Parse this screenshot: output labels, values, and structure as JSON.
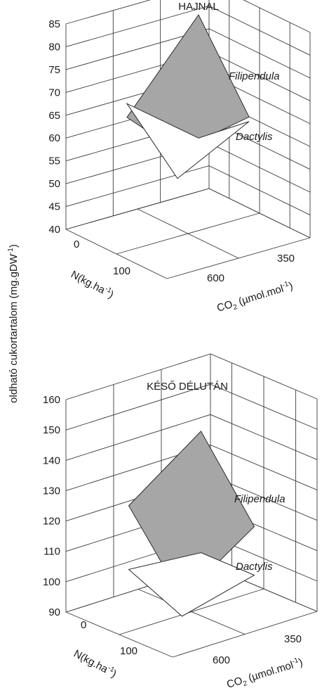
{
  "figure": {
    "y_axis_label": "oldható cukortartalom (mg.gDW",
    "y_axis_label_sup": "-1",
    "y_axis_label_end": ")"
  },
  "chart_data": [
    {
      "type": "surface",
      "title": "HAJNAL",
      "ylim": [
        40,
        85
      ],
      "yticks": [
        "40",
        "45",
        "50",
        "55",
        "60",
        "65",
        "70",
        "75",
        "80",
        "85"
      ],
      "n_label": "N(kg.ha",
      "n_label_sup": "-1",
      "n_label_end": ")",
      "n_ticks": [
        "0",
        "100"
      ],
      "co2_label": "CO",
      "co2_label_sub": "2",
      "co2_label_rest": " (µmol.mol",
      "co2_label_sup": "-1",
      "co2_label_end": ")",
      "co2_ticks": [
        "350",
        "600"
      ],
      "grid": true,
      "series": [
        {
          "name": "Filipendula",
          "color": "#a6a6a6",
          "values": {
            "n0_co2_350": 83,
            "n0_co2_600": 65,
            "n100_co2_350": 66,
            "n100_co2_600": 63
          }
        },
        {
          "name": "Dactylis",
          "color": "#ffffff",
          "values": {
            "n0_co2_350": 56,
            "n0_co2_600": 68,
            "n100_co2_350": 65,
            "n100_co2_600": 57
          }
        }
      ]
    },
    {
      "type": "surface",
      "title": "KÉSŐ DÉLUTÁN",
      "ylim": [
        90,
        160
      ],
      "yticks": [
        "90",
        "100",
        "110",
        "120",
        "130",
        "140",
        "150",
        "160"
      ],
      "n_label": "N(kg.ha",
      "n_label_sup": "-1",
      "n_label_end": ")",
      "n_ticks": [
        "0",
        "100"
      ],
      "co2_label": "CO",
      "co2_label_sub": "2",
      "co2_label_rest": " (µmol.mol",
      "co2_label_sup": "-1",
      "co2_label_end": ")",
      "co2_ticks": [
        "350",
        "600"
      ],
      "grid": true,
      "series": [
        {
          "name": "Filipendula",
          "color": "#a6a6a6",
          "values": {
            "n0_co2_350": 142,
            "n0_co2_600": 125,
            "n100_co2_350": 118,
            "n100_co2_600": 102
          }
        },
        {
          "name": "Dactylis",
          "color": "#ffffff",
          "values": {
            "n0_co2_350": 102,
            "n0_co2_600": 104,
            "n100_co2_350": 102,
            "n100_co2_600": 96
          }
        }
      ]
    }
  ]
}
